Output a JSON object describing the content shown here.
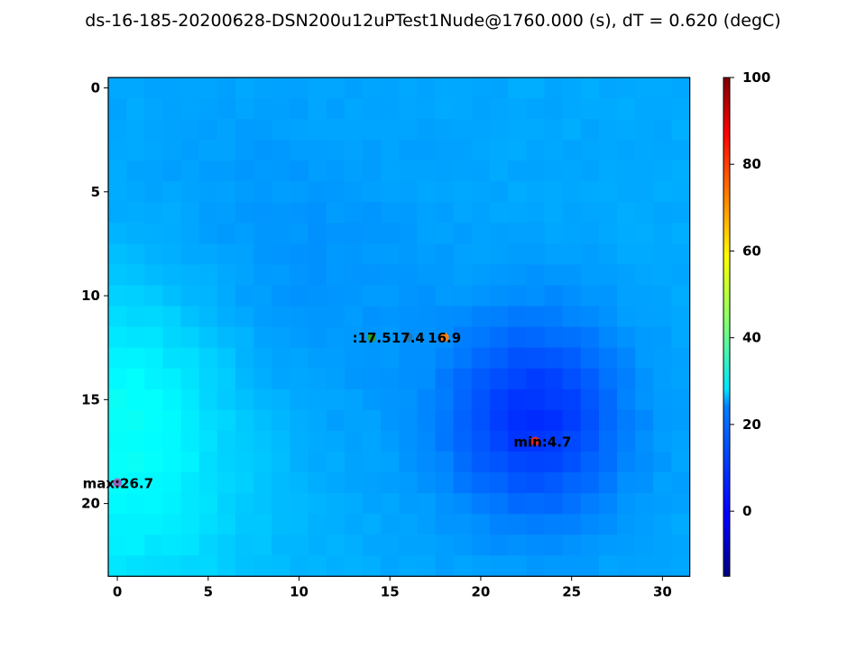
{
  "chart_data": {
    "type": "heatmap",
    "title": "ds-16-185-20200628-DSN200u12uPTest1Nude@1760.000 (s), dT = 0.620 (degC)",
    "rows": 24,
    "cols": 32,
    "x_ticks": [
      0,
      5,
      10,
      15,
      20,
      25,
      30
    ],
    "y_ticks": [
      0,
      5,
      10,
      15,
      20
    ],
    "colorbar": {
      "colormap": "jet",
      "vmin": -15,
      "vmax": 100,
      "ticks": [
        0,
        20,
        40,
        60,
        80,
        100
      ]
    },
    "base_value": 18.5,
    "hotspots": [
      {
        "col": 0,
        "row": 19,
        "value": 26.7,
        "radius": 6
      },
      {
        "col": 1,
        "row": 14,
        "value": 23.0,
        "radius": 4
      },
      {
        "col": 9,
        "row": 10,
        "value": 15.5,
        "radius": 6
      },
      {
        "col": 23,
        "row": 16,
        "value": 4.7,
        "radius": 3.5
      }
    ],
    "annotations": [
      {
        "label": "max:26.7",
        "col": 0,
        "row": 19,
        "marker_color": "#9467bd",
        "align": "end"
      },
      {
        "label": "min:4.7",
        "col": 23,
        "row": 17,
        "marker_color": "#d62728",
        "align": "end"
      },
      {
        "label": ":17.5",
        "col": 14,
        "row": 12,
        "marker_color": "#2ca02c",
        "align": "middle"
      },
      {
        "label": "17.4",
        "col": 16,
        "row": 12,
        "marker_color": "#1f77b4",
        "align": "middle"
      },
      {
        "label": "16.9",
        "col": 18,
        "row": 12,
        "marker_color": "#ff7f0e",
        "align": "middle"
      }
    ]
  }
}
